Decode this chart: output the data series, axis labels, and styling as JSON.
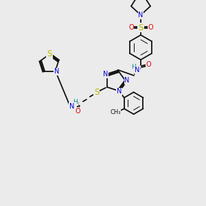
{
  "bg_color": "#ebebeb",
  "fig_size": [
    3.0,
    3.0
  ],
  "dpi": 100,
  "bond_color": "#111111",
  "bond_lw": 1.3,
  "atom_colors": {
    "N": "#0000dd",
    "O": "#dd0000",
    "S": "#bbbb00",
    "H": "#008888",
    "C": "#111111"
  },
  "afs": 7.0,
  "sfs": 6.0
}
